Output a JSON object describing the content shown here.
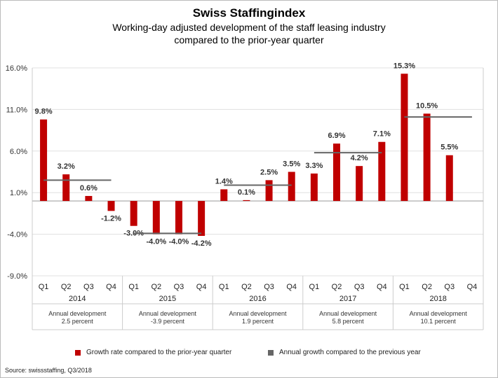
{
  "chart_data": {
    "type": "bar",
    "title": "Swiss Staffingindex",
    "subtitle_lines": [
      "Working-day adjusted development of the staff leasing industry",
      "compared to the prior-year quarter"
    ],
    "years": [
      "2014",
      "2015",
      "2016",
      "2017",
      "2018"
    ],
    "quarters": [
      "Q1",
      "Q2",
      "Q3",
      "Q4"
    ],
    "series": [
      {
        "name": "Growth rate compared to the prior-year quarter",
        "color": "#c00000",
        "values": [
          9.8,
          3.2,
          0.6,
          -1.2,
          -3.0,
          -4.0,
          -4.0,
          -4.2,
          1.4,
          0.1,
          2.5,
          3.5,
          3.3,
          6.9,
          4.2,
          7.1,
          15.3,
          10.5,
          5.5,
          null
        ],
        "labels": [
          "9.8%",
          "3.2%",
          "0.6%",
          "-1.2%",
          "-3.0%",
          "-4.0%",
          "-4.0%",
          "-4.2%",
          "1.4%",
          "0.1%",
          "2.5%",
          "3.5%",
          "3.3%",
          "6.9%",
          "4.2%",
          "7.1%",
          "15.3%",
          "10.5%",
          "5.5%",
          ""
        ]
      },
      {
        "name": "Annual growth compared to the previous year",
        "color": "#666666",
        "values": [
          2.5,
          -3.9,
          1.9,
          5.8,
          10.1
        ]
      }
    ],
    "annual_rows": [
      [
        "Annual development",
        "2.5 percent"
      ],
      [
        "Annual development",
        "-3.9 percent"
      ],
      [
        "Annual development",
        "1.9 percent"
      ],
      [
        "Annual development",
        "5.8 percent"
      ],
      [
        "Annual development",
        "10.1 percent"
      ]
    ],
    "yticks": [
      "16.0%",
      "11.0%",
      "6.0%",
      "1.0%",
      "-4.0%",
      "-9.0%"
    ],
    "ytick_values": [
      16,
      11,
      6,
      1,
      -4,
      -9
    ],
    "ylim": [
      -9,
      16
    ],
    "grid": true,
    "legend_placement": "bottom"
  },
  "source": "Source: swissstaffing, Q3/2018"
}
